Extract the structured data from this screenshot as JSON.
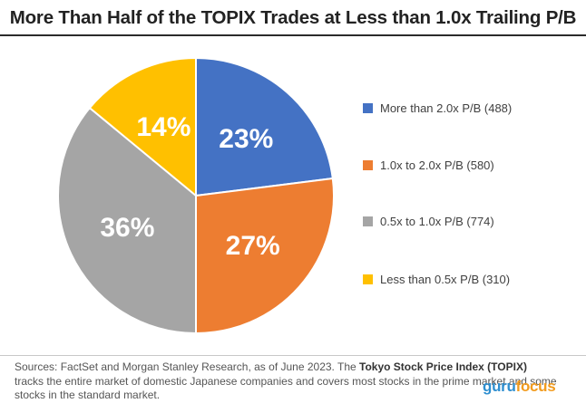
{
  "title": "More Than Half of the TOPIX Trades at Less than 1.0x Trailing P/B",
  "chart_data": {
    "type": "pie",
    "categories": [
      "More than 2.0x P/B (488)",
      "1.0x to 2.0x P/B (580)",
      "0.5x to 1.0x P/B (774)",
      "Less than 0.5x P/B (310)"
    ],
    "values": [
      23,
      27,
      36,
      14
    ],
    "data_labels": [
      "23%",
      "27%",
      "36%",
      "14%"
    ],
    "colors": [
      "#4472C4",
      "#ED7D31",
      "#A5A5A5",
      "#FFC000"
    ],
    "legend_position": "right"
  },
  "footer": {
    "text_1": "Sources: FactSet and Morgan Stanley Research, as of June 2023. The ",
    "bold": "Tokyo Stock Price Index (TOPIX)",
    "text_2": " tracks the entire market of domestic Japanese companies and covers most stocks in the prime market and some stocks in the standard market."
  },
  "logo": {
    "part1": "guru",
    "part2": "focus"
  }
}
